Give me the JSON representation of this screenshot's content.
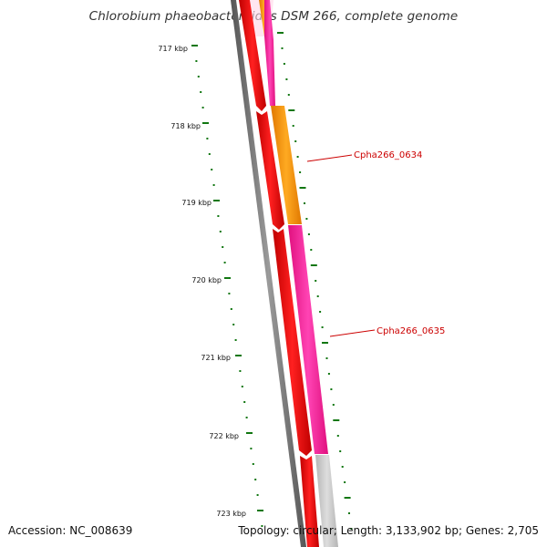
{
  "title": "Chlorobium phaeobacteroides DSM 266, complete genome",
  "footer": {
    "accession": "Accession: NC_008639",
    "summary": "Topology: circular; Length: 3,133,902 bp; Genes: 2,705"
  },
  "ticks": [
    "717 kbp",
    "718 kbp",
    "719 kbp",
    "720 kbp",
    "721 kbp",
    "722 kbp",
    "723 kbp"
  ],
  "gene_labels": [
    "Cpha266_0634",
    "Cpha266_0635"
  ],
  "colors": {
    "backbone": "#777777",
    "reverse_genes": "#ee0000",
    "orange_gene": "#ff9900",
    "pink_gene": "#ff1e9e",
    "grey_gene": "#c8c8c8",
    "tick": "#117711",
    "label": "#cc0000"
  }
}
